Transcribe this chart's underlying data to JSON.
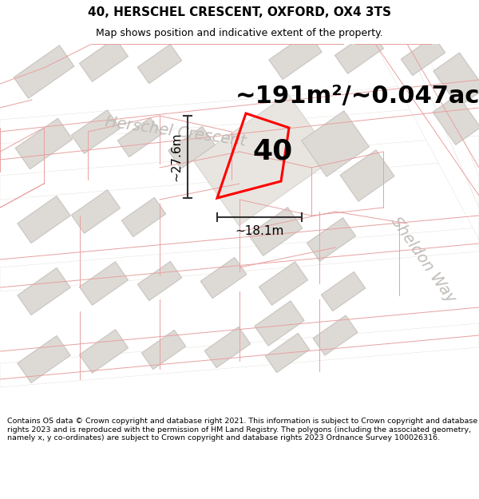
{
  "title": "40, HERSCHEL CRESCENT, OXFORD, OX4 3TS",
  "subtitle": "Map shows position and indicative extent of the property.",
  "area_label": "~191m²/~0.047ac.",
  "number_label": "40",
  "dim_height": "~27.6m",
  "dim_width": "~18.1m",
  "street_label_1": "Herschel Crescent",
  "street_label_2": "Sheldon Way",
  "footer": "Contains OS data © Crown copyright and database right 2021. This information is subject to Crown copyright and database rights 2023 and is reproduced with the permission of HM Land Registry. The polygons (including the associated geometry, namely x, y co-ordinates) are subject to Crown copyright and database rights 2023 Ordnance Survey 100026316.",
  "map_bg": "#f2f1ef",
  "building_color": "#dddad5",
  "building_edge_color": "#c8c5c0",
  "road_color": "#ffffff",
  "road_edge_color": "#e0ddd8",
  "pink_line_color": "#e8a0a0",
  "red_polygon_color": "#ff0000",
  "dim_line_color": "#333333",
  "street_text_color": "#c0bcb8",
  "title_fontsize": 11,
  "subtitle_fontsize": 9,
  "footer_fontsize": 6.8,
  "area_fontsize": 22,
  "number_fontsize": 26,
  "dim_fontsize": 11,
  "street_fontsize": 14
}
